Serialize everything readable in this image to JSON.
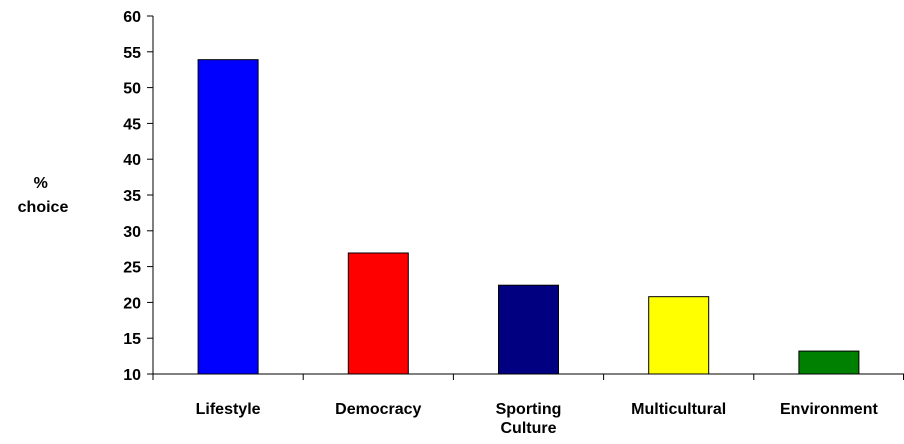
{
  "chart_data": {
    "type": "bar",
    "title": "",
    "xlabel": "",
    "ylabel": [
      "%",
      "choice"
    ],
    "categories": [
      [
        "Lifestyle"
      ],
      [
        "Democracy"
      ],
      [
        "Sporting",
        "Culture"
      ],
      [
        "Multicultural"
      ],
      [
        "Environment"
      ]
    ],
    "values": [
      53.9,
      26.9,
      22.4,
      20.8,
      13.2
    ],
    "colors": [
      "#0000FF",
      "#FF0000",
      "#000080",
      "#FFFF00",
      "#008000"
    ],
    "ylim": [
      10,
      60
    ],
    "yticks": [
      10,
      15,
      20,
      25,
      30,
      35,
      40,
      45,
      50,
      55,
      60
    ],
    "grid": false,
    "legend": "none"
  }
}
